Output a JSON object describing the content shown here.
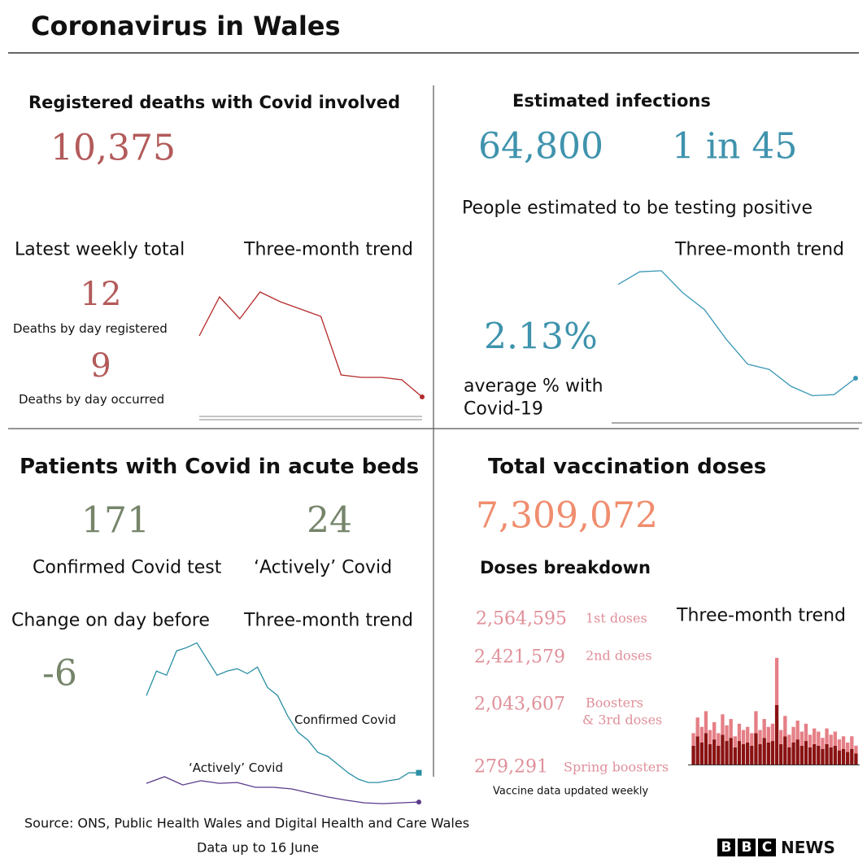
{
  "header": {
    "title": "Coronavirus in Wales"
  },
  "deaths": {
    "title": "Registered deaths with Covid involved",
    "total": "10,375",
    "weekly_label": "Latest weekly total",
    "trend_label": "Three-month trend",
    "registered": "12",
    "registered_label": "Deaths by day registered",
    "occurred": "9",
    "occurred_label": "Deaths by day occurred",
    "trend": {
      "values": [
        34,
        50,
        41,
        52,
        48,
        45,
        42,
        18,
        17,
        17,
        16,
        9
      ],
      "ylim": [
        0,
        60
      ]
    }
  },
  "infections": {
    "title": "Estimated infections",
    "count": "64,800",
    "ratio": "1 in 45",
    "description": "People estimated to be testing positive",
    "trend_label": "Three-month trend",
    "percent": "2.13%",
    "percent_label_1": "average % with",
    "percent_label_2": "Covid-19",
    "trend": {
      "values": [
        6.6,
        7.2,
        7.25,
        6.2,
        5.4,
        4.0,
        2.8,
        2.55,
        1.75,
        1.3,
        1.35,
        2.13
      ],
      "ylim": [
        0,
        7.5
      ]
    }
  },
  "patients": {
    "title": "Patients with Covid in acute beds",
    "confirmed": "171",
    "active": "24",
    "confirmed_label": "Confirmed Covid test",
    "active_label": "‘Actively’ Covid",
    "change_label": "Change on day before",
    "trend_label": "Three-month trend",
    "change": "-6",
    "confirmed_line_label": "Confirmed Covid",
    "active_line_label": "‘Actively’ Covid",
    "ylim": [
      0,
      850
    ],
    "confirmed_trend": [
      559,
      682,
      661,
      784,
      800,
      824,
      743,
      661,
      682,
      694,
      669,
      702,
      600,
      559,
      457,
      376,
      335,
      273,
      253,
      212,
      171,
      139,
      122,
      122,
      131,
      139,
      171,
      171
    ],
    "active_trend": [
      118,
      151,
      110,
      131,
      118,
      122,
      98,
      98,
      90,
      69,
      49,
      33,
      20,
      16,
      20,
      24
    ]
  },
  "vaccination": {
    "title": "Total vaccination doses",
    "total": "7,309,072",
    "breakdown_title": "Doses breakdown",
    "trend_label": "Three-month trend",
    "doses": [
      {
        "value": "2,564,595",
        "label": "1st doses"
      },
      {
        "value": "2,421,579",
        "label": "2nd doses"
      },
      {
        "value": "2,043,607",
        "label": "Boosters",
        "label_2": "& 3rd doses"
      },
      {
        "value": "279,291",
        "label": "Spring boosters"
      }
    ],
    "note": "Vaccine data updated weekly",
    "ylim": [
      0,
      70
    ],
    "bars_dark": [
      12,
      18,
      14,
      20,
      13,
      16,
      12,
      19,
      15,
      17,
      11,
      15,
      13,
      14,
      12,
      20,
      13,
      17,
      14,
      15,
      38,
      13,
      18,
      11,
      14,
      16,
      12,
      15,
      11,
      13,
      12,
      10,
      13,
      11,
      12,
      9,
      10,
      8,
      10,
      7
    ],
    "bars_light": [
      8,
      12,
      10,
      14,
      9,
      11,
      8,
      13,
      10,
      12,
      7,
      11,
      9,
      10,
      8,
      14,
      9,
      12,
      10,
      11,
      30,
      9,
      13,
      8,
      10,
      12,
      9,
      11,
      8,
      10,
      9,
      7,
      10,
      8,
      9,
      7,
      8,
      6,
      8,
      5
    ]
  },
  "footer": {
    "source": "Source: ONS, Public Health Wales and Digital Health and Care Wales",
    "date": "Data up to 16 June",
    "logo": [
      "B",
      "B",
      "C"
    ],
    "logo_text": "NEWS"
  }
}
